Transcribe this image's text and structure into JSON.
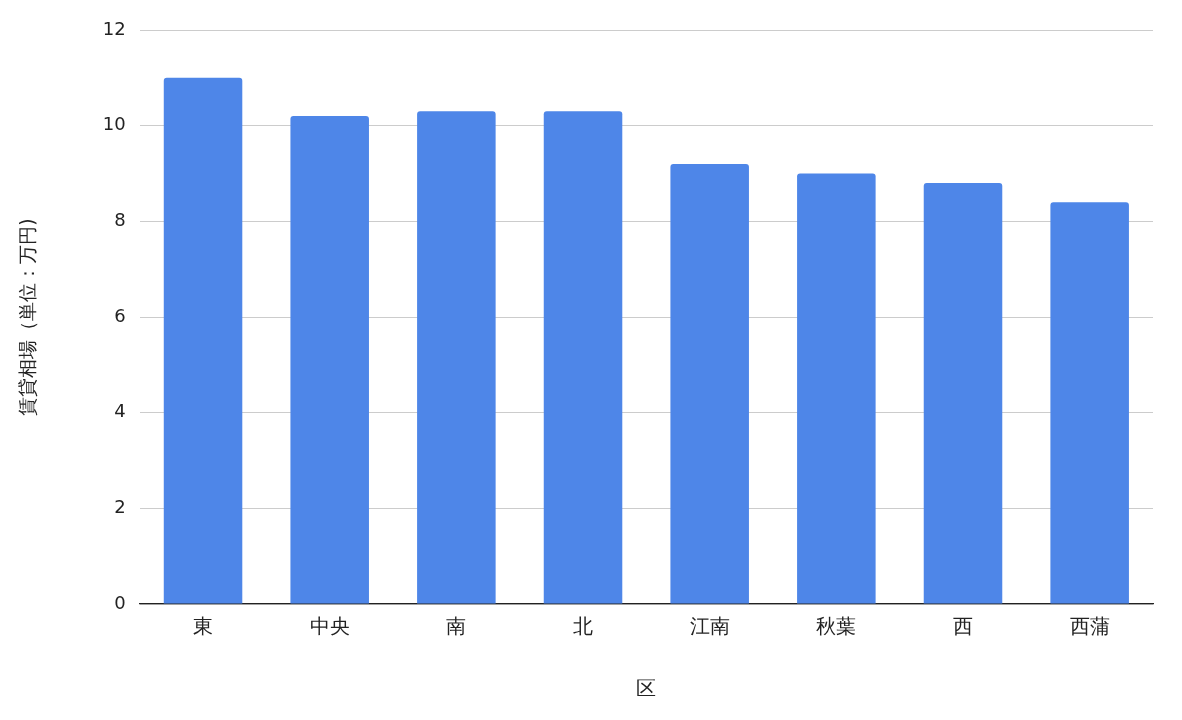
{
  "chart_data": {
    "type": "bar",
    "xlabel": "区",
    "ylabel": "賃貸相場（単位：万円)",
    "categories": [
      "東",
      "中央",
      "南",
      "北",
      "江南",
      "秋葉",
      "西",
      "西蒲"
    ],
    "values": [
      11.0,
      10.2,
      10.3,
      10.3,
      9.2,
      9.0,
      8.8,
      8.4
    ],
    "color": "#4e86e8",
    "ylim": [
      0,
      12
    ],
    "yticks": [
      0,
      2,
      4,
      6,
      8,
      10,
      12
    ],
    "grid": "y"
  }
}
